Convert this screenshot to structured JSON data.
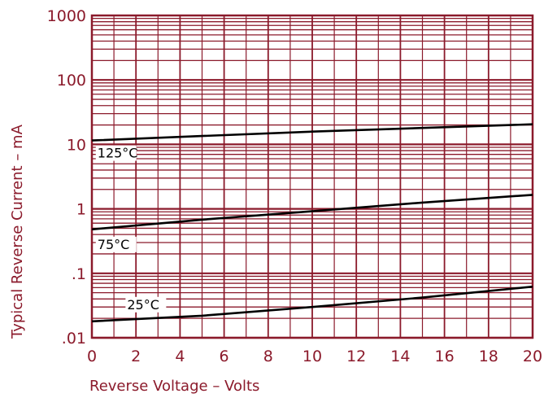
{
  "chart_data": {
    "type": "line",
    "xlabel": "Reverse Voltage – Volts",
    "ylabel": "Typical Reverse Current – mA",
    "xlim": [
      0,
      20
    ],
    "ylim": [
      0.01,
      1000
    ],
    "y_scale": "log",
    "grid": true,
    "x_ticks": [
      "0",
      "2",
      "4",
      "6",
      "8",
      "10",
      "12",
      "14",
      "16",
      "18",
      "20"
    ],
    "y_ticks": [
      {
        "value": 0.01,
        "label": ".01"
      },
      {
        "value": 0.1,
        "label": ".1"
      },
      {
        "value": 1,
        "label": "1"
      },
      {
        "value": 10,
        "label": "10"
      },
      {
        "value": 100,
        "label": "100"
      },
      {
        "value": 1000,
        "label": "1000"
      }
    ],
    "colors": {
      "grid": "#8b1a2b",
      "curve": "#000000",
      "text": "#8b1a2b"
    },
    "series": [
      {
        "name": "125°C",
        "x": [
          0,
          5,
          10,
          15,
          20
        ],
        "y": [
          11.5,
          13.5,
          15.8,
          18,
          20.5
        ]
      },
      {
        "name": "75°C",
        "x": [
          0,
          5,
          10,
          15,
          20
        ],
        "y": [
          0.48,
          0.68,
          0.92,
          1.25,
          1.65
        ]
      },
      {
        "name": "25°C",
        "x": [
          0,
          5,
          10,
          15,
          20
        ],
        "y": [
          0.018,
          0.022,
          0.03,
          0.042,
          0.062
        ]
      }
    ]
  }
}
